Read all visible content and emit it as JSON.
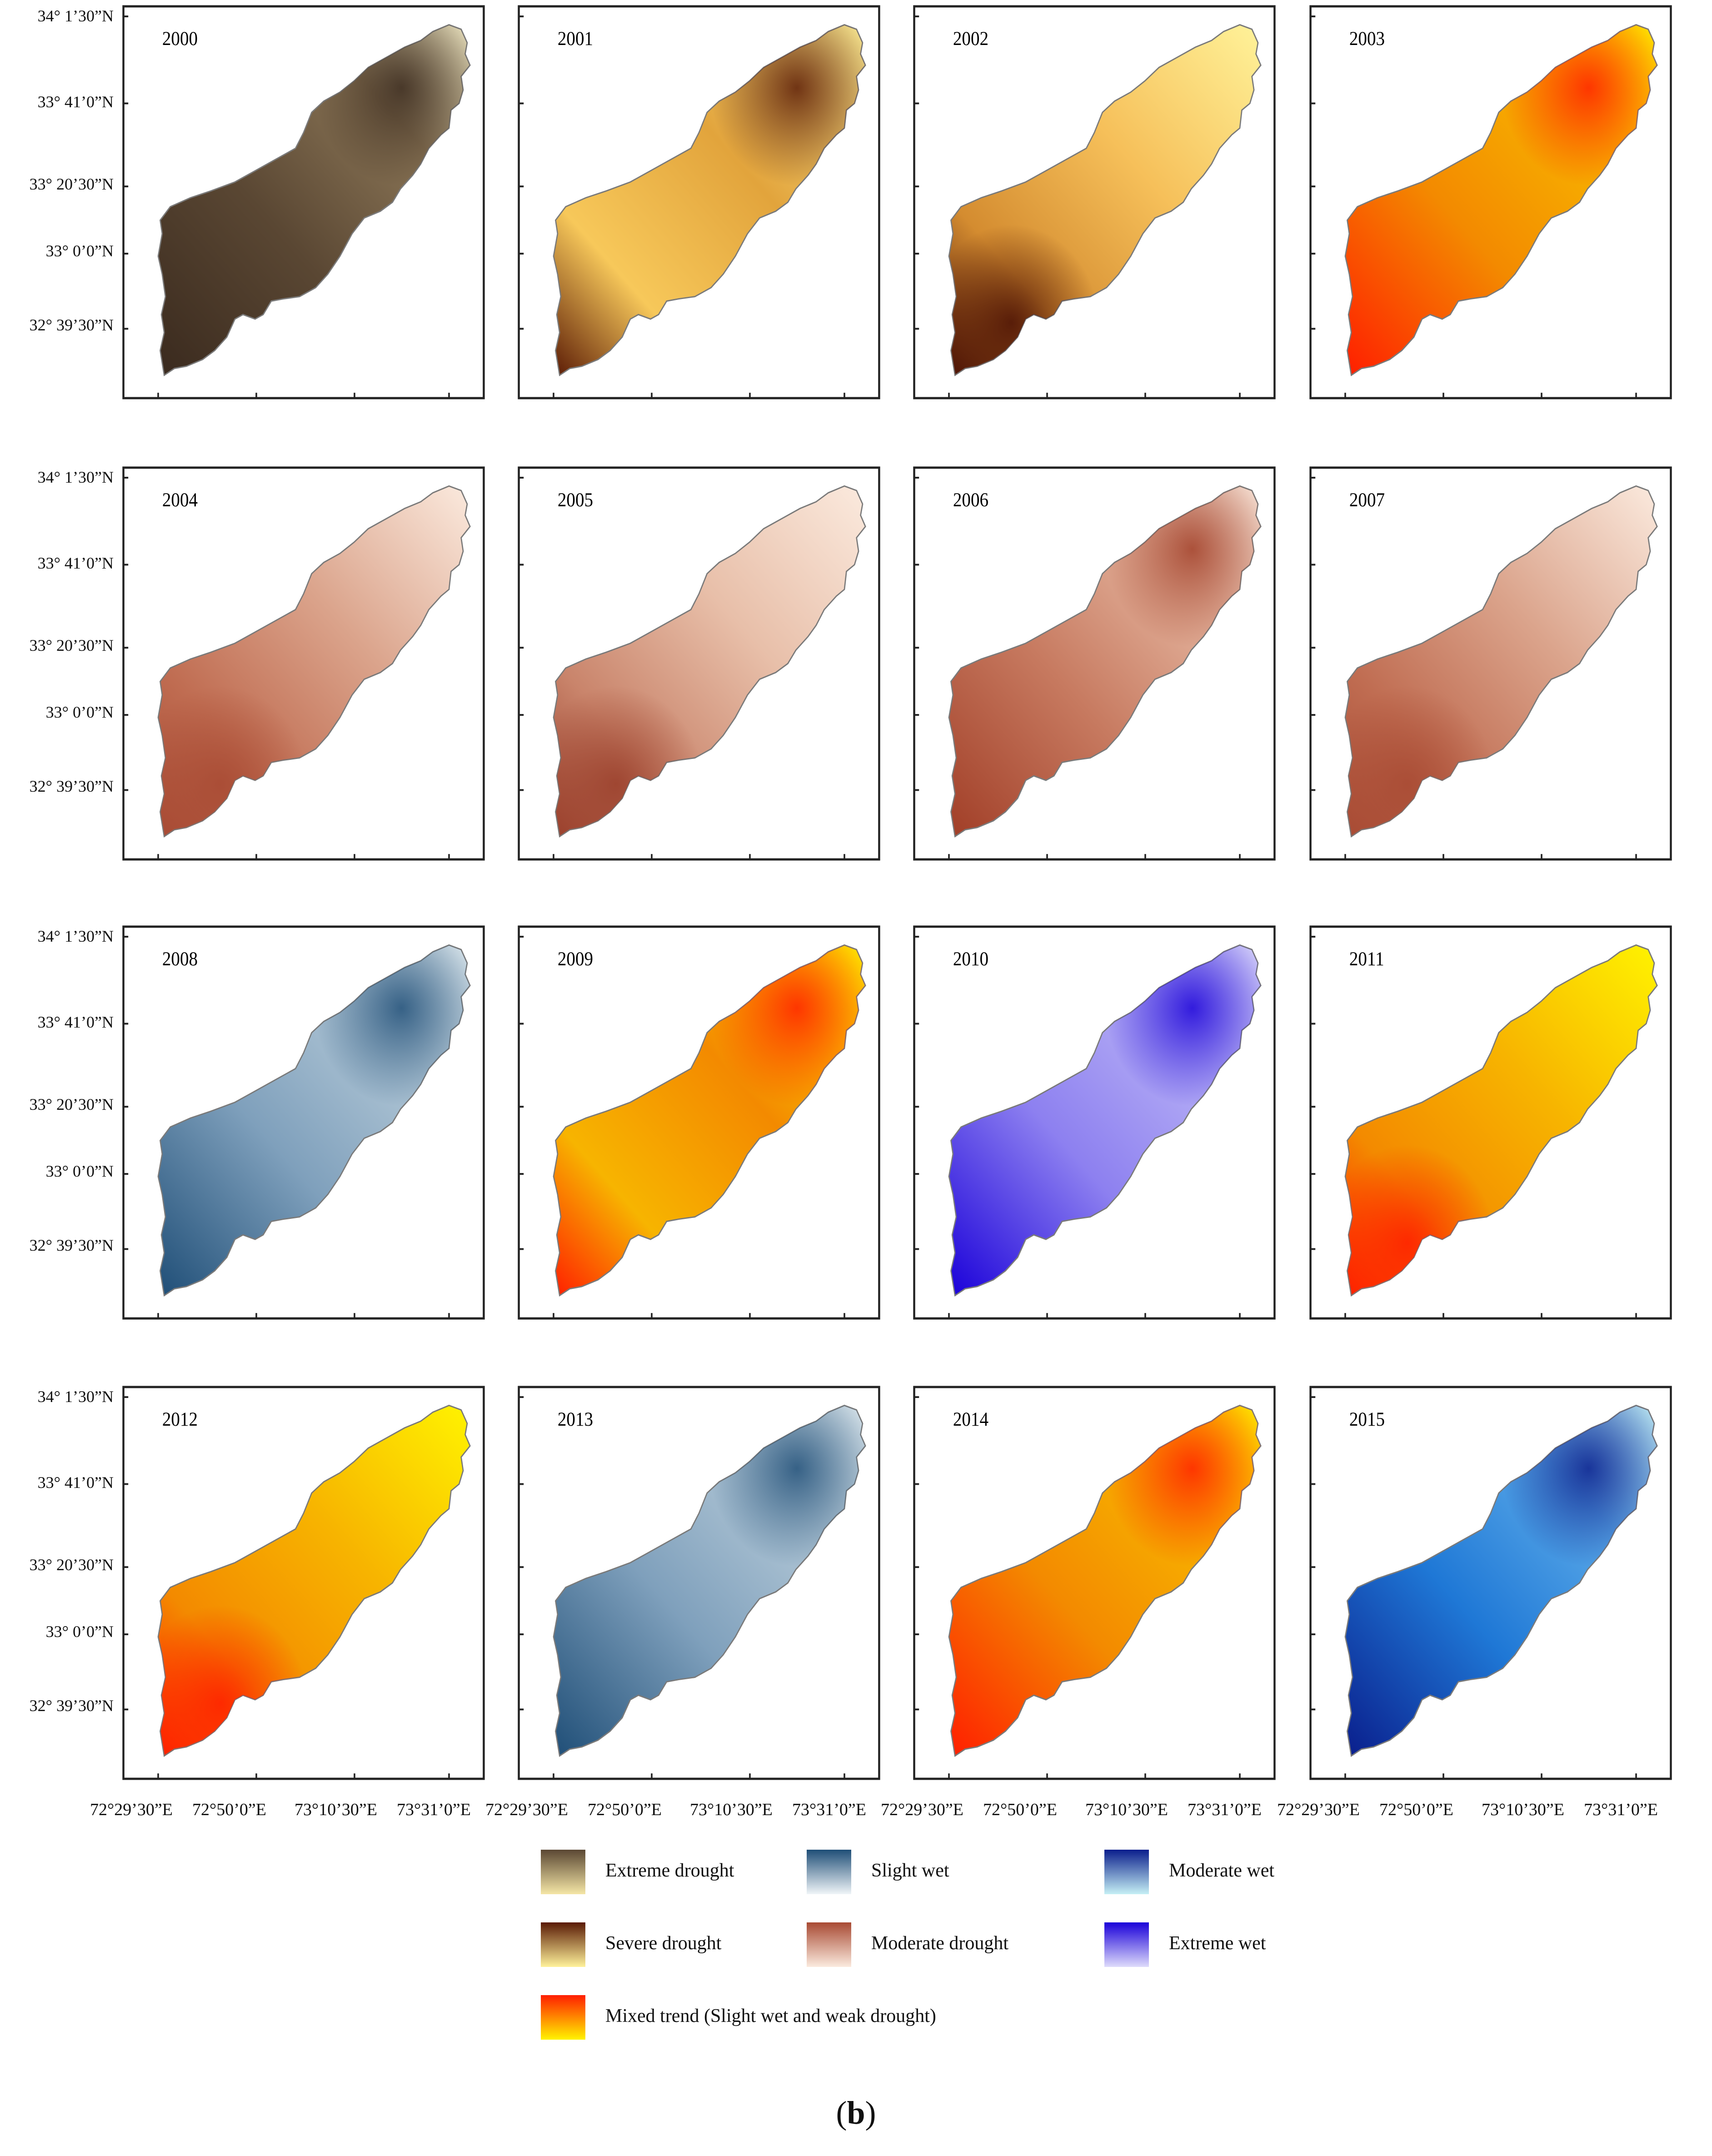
{
  "figure": {
    "caption_prefix": "(",
    "caption_letter": "b",
    "caption_suffix": ")"
  },
  "panels": [
    {
      "year": "2000",
      "category": "Extreme drought",
      "fill": [
        "#3a2a1e",
        "#5a4733",
        "#8a7556",
        "#f3ecc8"
      ],
      "hotspot": "north-east"
    },
    {
      "year": "2001",
      "category": "Severe drought",
      "fill": [
        "#5a1a05",
        "#e2a43c",
        "#f7c85a",
        "#fff29a"
      ],
      "hotspot": "mixed"
    },
    {
      "year": "2002",
      "category": "Severe drought",
      "fill": [
        "#4a1004",
        "#d48c30",
        "#f6c05a",
        "#fff39a"
      ],
      "hotspot": "south-west"
    },
    {
      "year": "2003",
      "category": "Mixed trend",
      "fill": [
        "#ff1e00",
        "#f38a00",
        "#f7b400",
        "#fff300"
      ],
      "hotspot": "north-east"
    },
    {
      "year": "2004",
      "category": "Moderate drought",
      "fill": [
        "#a84a33",
        "#c06d52",
        "#dba48c",
        "#fbeade"
      ],
      "hotspot": "south-west"
    },
    {
      "year": "2005",
      "category": "Moderate drought",
      "fill": [
        "#9a3f2b",
        "#c9846b",
        "#e8bfa9",
        "#fbeade"
      ],
      "hotspot": "south-west"
    },
    {
      "year": "2006",
      "category": "Moderate drought",
      "fill": [
        "#a13e27",
        "#c77a60",
        "#e4b49e",
        "#fbeade"
      ],
      "hotspot": "north-east"
    },
    {
      "year": "2007",
      "category": "Moderate drought",
      "fill": [
        "#a84a33",
        "#c06d52",
        "#dba48c",
        "#fbeade"
      ],
      "hotspot": "south-west"
    },
    {
      "year": "2008",
      "category": "Slight wet",
      "fill": [
        "#1f4e77",
        "#7fa0bc",
        "#b2c7d6",
        "#e1ebf0"
      ],
      "hotspot": "north-east"
    },
    {
      "year": "2009",
      "category": "Mixed trend",
      "fill": [
        "#ff1e00",
        "#f38a00",
        "#f7b400",
        "#fff300"
      ],
      "hotspot": "mixed"
    },
    {
      "year": "2010",
      "category": "Extreme wet",
      "fill": [
        "#1a00d9",
        "#8d80f0",
        "#b7b0f5",
        "#dedbfb"
      ],
      "hotspot": "north-east"
    },
    {
      "year": "2011",
      "category": "Mixed trend",
      "fill": [
        "#ff1e00",
        "#f38a00",
        "#f7b400",
        "#fff300"
      ],
      "hotspot": "south-west"
    },
    {
      "year": "2012",
      "category": "Mixed trend",
      "fill": [
        "#ff1e00",
        "#f38a00",
        "#f7b400",
        "#fff300"
      ],
      "hotspot": "south-west"
    },
    {
      "year": "2013",
      "category": "Slight wet",
      "fill": [
        "#1f4e77",
        "#7fa0bc",
        "#b2c7d6",
        "#e1ebf0"
      ],
      "hotspot": "north-east"
    },
    {
      "year": "2014",
      "category": "Mixed trend",
      "fill": [
        "#ff1e00",
        "#f38a00",
        "#f7b400",
        "#fff300"
      ],
      "hotspot": "north-east"
    },
    {
      "year": "2015",
      "category": "Moderate wet",
      "fill": [
        "#0a1e8c",
        "#1f78d6",
        "#5aa9e8",
        "#c6f0f5"
      ],
      "hotspot": "north-east"
    }
  ],
  "axes": {
    "latitude_labels": [
      "34° 1’30”N",
      "33° 41’0”N",
      "33° 20’30”N",
      "33° 0’0”N",
      "32° 39’30”N"
    ],
    "longitude_labels": [
      "72°29’30”E",
      "72°50’0”E",
      "73°10’30”E",
      "73°31’0”E"
    ]
  },
  "legend": [
    {
      "label": "Extreme drought",
      "gradient": [
        "#5a4733",
        "#f5e6a6"
      ]
    },
    {
      "label": "Slight wet",
      "gradient": [
        "#1f4e77",
        "#f0f5f8"
      ]
    },
    {
      "label": "Moderate wet",
      "gradient": [
        "#0a1e8c",
        "#c6f0f5"
      ]
    },
    {
      "label": "Severe drought",
      "gradient": [
        "#5a1a05",
        "#fff29a"
      ]
    },
    {
      "label": "Moderate drought",
      "gradient": [
        "#a84a33",
        "#fbeade"
      ]
    },
    {
      "label": "Extreme wet",
      "gradient": [
        "#1a00d9",
        "#dedbfb"
      ]
    },
    {
      "label": "Mixed trend (Slight wet and weak drought)",
      "gradient": [
        "#ff1e00",
        "#fff300"
      ]
    }
  ]
}
